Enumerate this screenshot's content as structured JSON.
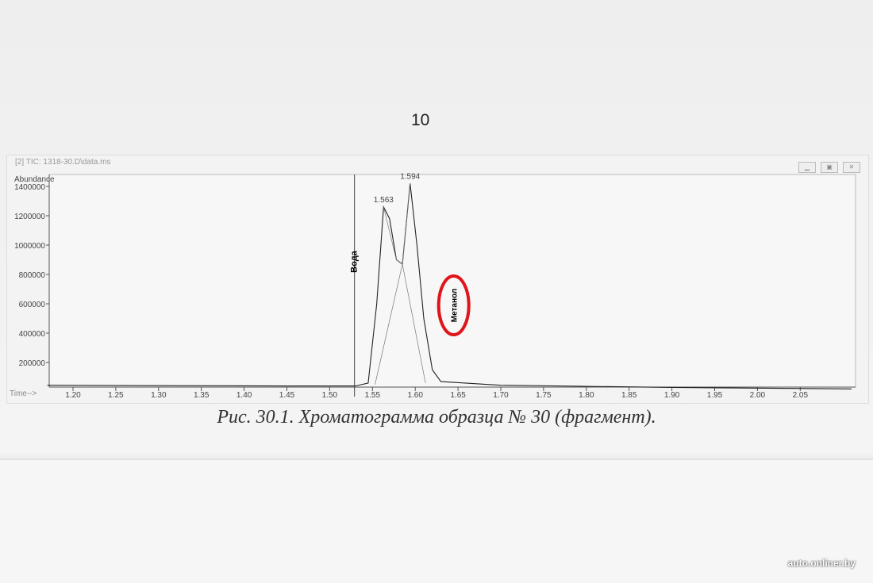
{
  "page_number": "10",
  "window": {
    "title": "[2] TIC: 1318-30.D\\data.ms",
    "buttons": [
      "minimize",
      "maximize",
      "close"
    ]
  },
  "caption": "Рис. 30.1. Хроматограмма образца № 30 (фрагмент).",
  "watermark": "auto.onliner.by",
  "chart_data": {
    "type": "line",
    "ylabel": "Abundance",
    "xlabel": "Time-->",
    "xlim": [
      1.17,
      2.11
    ],
    "ylim": [
      0,
      1450000
    ],
    "xticks": [
      "1.20",
      "1.25",
      "1.30",
      "1.35",
      "1.40",
      "1.45",
      "1.50",
      "1.55",
      "1.60",
      "1.65",
      "1.70",
      "1.75",
      "1.80",
      "1.85",
      "1.90",
      "1.95",
      "2.00",
      "2.05"
    ],
    "yticks": [
      "200000",
      "400000",
      "600000",
      "800000",
      "1000000",
      "1200000",
      "1400000"
    ],
    "series": [
      {
        "x": [
          1.17,
          1.3,
          1.45,
          1.53,
          1.545,
          1.555,
          1.563,
          1.57,
          1.578,
          1.585,
          1.594,
          1.602,
          1.61,
          1.62,
          1.63,
          1.7,
          1.9,
          2.11
        ],
        "y": [
          45000,
          42000,
          40000,
          40000,
          60000,
          600000,
          1260000,
          1180000,
          900000,
          870000,
          1420000,
          1000000,
          500000,
          150000,
          70000,
          45000,
          30000,
          20000
        ]
      },
      {
        "x": [
          1.553,
          1.585,
          1.594
        ],
        "y": [
          50000,
          870000,
          1420000
        ]
      },
      {
        "x": [
          1.563,
          1.578,
          1.585,
          1.612
        ],
        "y": [
          1260000,
          900000,
          870000,
          60000
        ]
      }
    ],
    "peak_labels": [
      {
        "x": 1.563,
        "y": 1260000,
        "text": "1.563"
      },
      {
        "x": 1.594,
        "y": 1420000,
        "text": "1.594"
      }
    ],
    "markers": [
      {
        "x": 1.529,
        "text": "Вода"
      }
    ],
    "annotations": [
      {
        "x": 1.645,
        "y": 600000,
        "text": "Метанол",
        "highlight": "#e0141b"
      }
    ]
  }
}
